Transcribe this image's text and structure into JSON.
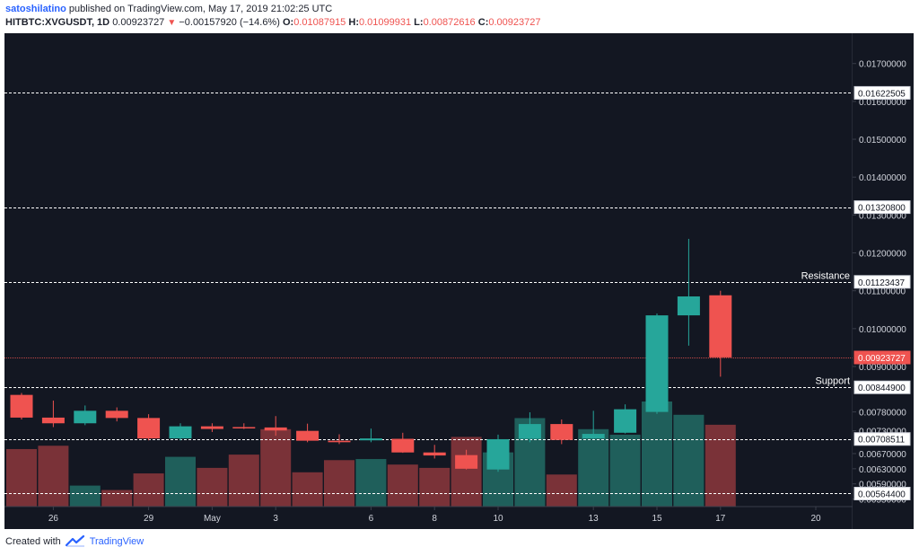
{
  "header": {
    "author": "satoshilatino",
    "published_text": "published on TradingView.com, May 17, 2019 21:02:25 UTC",
    "symbol": "HITBTC:XVGUSDT, 1D",
    "last_price": "0.00923727",
    "change": "−0.00157920 (−14.6%)",
    "ohlc": {
      "o_label": "O:",
      "o": "0.01087915",
      "h_label": "H:",
      "h": "0.01099931",
      "l_label": "L:",
      "l": "0.00872616",
      "c_label": "C:",
      "c": "0.00923727"
    }
  },
  "footer": {
    "created_with": "Created with",
    "brand": "TradingView"
  },
  "colors": {
    "background": "#131722",
    "up": "#26a69a",
    "down": "#ef5350",
    "vol_up": "#1f5f5b",
    "vol_down": "#7a3238",
    "axis_text": "#d1d4dc"
  },
  "chart_data": {
    "type": "candlestick",
    "ylim": [
      0.0053,
      0.0178
    ],
    "price_ticks": [
      "0.01700000",
      "0.01600000",
      "0.01500000",
      "0.01400000",
      "0.01300000",
      "0.01200000",
      "0.01100000",
      "0.01000000",
      "0.00900000",
      "0.00780000",
      "0.00730000",
      "0.00670000",
      "0.00630000",
      "0.00590000",
      "0.00550000"
    ],
    "x_ticks": [
      {
        "index": 1,
        "label": "26"
      },
      {
        "index": 4,
        "label": "29"
      },
      {
        "index": 6,
        "label": "May"
      },
      {
        "index": 8,
        "label": "3"
      },
      {
        "index": 11,
        "label": "6"
      },
      {
        "index": 13,
        "label": "8"
      },
      {
        "index": 15,
        "label": "10"
      },
      {
        "index": 18,
        "label": "13"
      },
      {
        "index": 20,
        "label": "15"
      },
      {
        "index": 22,
        "label": "17"
      },
      {
        "index": 25,
        "label": "20"
      }
    ],
    "levels": [
      {
        "value": 0.01622505,
        "label": "0.01622505",
        "name": ""
      },
      {
        "value": 0.013208,
        "label": "0.01320800",
        "name": ""
      },
      {
        "value": 0.01123437,
        "label": "0.01123437",
        "name": "Resistance"
      },
      {
        "value": 0.008449,
        "label": "0.00844900",
        "name": "Support"
      },
      {
        "value": 0.00708511,
        "label": "0.00708511",
        "name": ""
      },
      {
        "value": 0.005644,
        "label": "0.00564400",
        "name": ""
      }
    ],
    "last_price": {
      "value": 0.00923727,
      "label": "0.00923727"
    },
    "candles": [
      {
        "o": 0.00825,
        "h": 0.0083,
        "l": 0.0076,
        "c": 0.00765
      },
      {
        "o": 0.00765,
        "h": 0.0081,
        "l": 0.0074,
        "c": 0.0075
      },
      {
        "o": 0.0075,
        "h": 0.00797,
        "l": 0.00745,
        "c": 0.00783
      },
      {
        "o": 0.00783,
        "h": 0.00792,
        "l": 0.00755,
        "c": 0.00764
      },
      {
        "o": 0.00764,
        "h": 0.00774,
        "l": 0.00705,
        "c": 0.0071
      },
      {
        "o": 0.0071,
        "h": 0.0075,
        "l": 0.00705,
        "c": 0.00742
      },
      {
        "o": 0.00742,
        "h": 0.0075,
        "l": 0.00727,
        "c": 0.00735
      },
      {
        "o": 0.0074,
        "h": 0.0075,
        "l": 0.00735,
        "c": 0.00739
      },
      {
        "o": 0.00739,
        "h": 0.00769,
        "l": 0.00717,
        "c": 0.00731
      },
      {
        "o": 0.0073,
        "h": 0.00749,
        "l": 0.007,
        "c": 0.00704
      },
      {
        "o": 0.00704,
        "h": 0.00721,
        "l": 0.00695,
        "c": 0.007
      },
      {
        "o": 0.00705,
        "h": 0.00736,
        "l": 0.007,
        "c": 0.0071
      },
      {
        "o": 0.00709,
        "h": 0.00725,
        "l": 0.00672,
        "c": 0.00673
      },
      {
        "o": 0.00673,
        "h": 0.00693,
        "l": 0.00657,
        "c": 0.00665
      },
      {
        "o": 0.00666,
        "h": 0.0068,
        "l": 0.00628,
        "c": 0.0063
      },
      {
        "o": 0.00628,
        "h": 0.0072,
        "l": 0.00622,
        "c": 0.00708
      },
      {
        "o": 0.00709,
        "h": 0.00779,
        "l": 0.007,
        "c": 0.00748
      },
      {
        "o": 0.00748,
        "h": 0.0076,
        "l": 0.00695,
        "c": 0.00706
      },
      {
        "o": 0.0071,
        "h": 0.00783,
        "l": 0.00708,
        "c": 0.00722
      },
      {
        "o": 0.00725,
        "h": 0.008,
        "l": 0.00723,
        "c": 0.00787
      },
      {
        "o": 0.0078,
        "h": 0.0104,
        "l": 0.00775,
        "c": 0.01035
      },
      {
        "o": 0.01035,
        "h": 0.01237,
        "l": 0.00955,
        "c": 0.01085
      },
      {
        "o": 0.01088,
        "h": 0.011,
        "l": 0.00873,
        "c": 0.00924
      }
    ],
    "volume": [
      0.52,
      0.55,
      0.19,
      0.15,
      0.3,
      0.45,
      0.35,
      0.47,
      0.7,
      0.31,
      0.42,
      0.43,
      0.38,
      0.35,
      0.63,
      0.49,
      0.8,
      0.29,
      0.7,
      0.65,
      0.95,
      0.83,
      0.74
    ],
    "volume_max_units": 0.95
  }
}
